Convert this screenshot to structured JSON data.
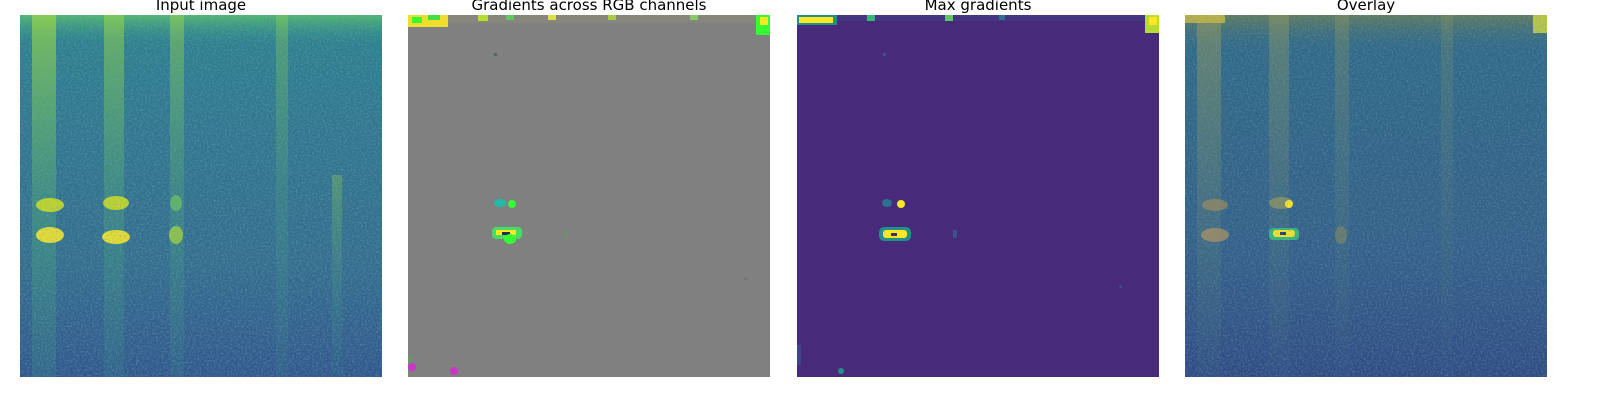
{
  "figure": {
    "panels": [
      {
        "title": "Input image",
        "kind": "input",
        "colormap": "viridis",
        "background_color": "#2f7c8e"
      },
      {
        "title": "Gradients across RGB channels",
        "kind": "rgb-gradients",
        "background_color": "#808080"
      },
      {
        "title": "Max gradients",
        "kind": "max-gradients",
        "colormap": "viridis",
        "background_color": "#472a7a"
      },
      {
        "title": "Overlay",
        "kind": "overlay",
        "colormap": "viridis",
        "background_color": "#2e6a86"
      }
    ],
    "palette": {
      "viridis_dark": "#440154",
      "viridis_blue": "#31688e",
      "viridis_teal": "#21908c",
      "viridis_green": "#5ec962",
      "viridis_yellow": "#fde725",
      "gradient_green": "#33ff33",
      "gradient_magenta": "#cc33cc"
    }
  }
}
